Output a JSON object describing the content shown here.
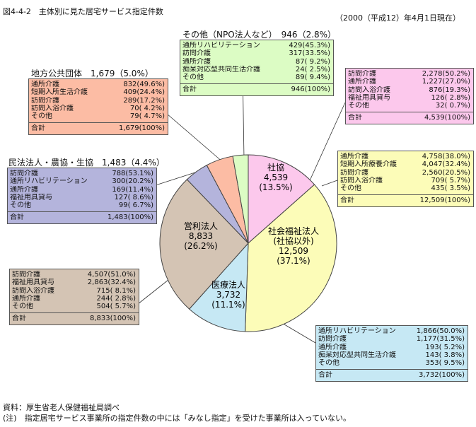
{
  "figure_title": "図4-4-2　主体別に見た居宅サービス指定件数",
  "date_note": "（2000（平成12）年4月1日現在）",
  "footer": {
    "source": "資料：厚生省老人保健福祉局調べ",
    "note": "(注)　指定居宅サービス事業所の指定件数の中には「みなし指定」を受けた事業所は入っていない。"
  },
  "colors": {
    "shakyo": "#fcc8ec",
    "shafuku": "#fcfcb8",
    "iryo": "#c6e8f4",
    "eiri": "#d4c4b4",
    "minpo": "#b4b4dc",
    "chiho": "#fcbca4",
    "sonota": "#dcfcc4"
  },
  "chart_data": {
    "type": "pie",
    "title": "",
    "slices": [
      {
        "key": "shakyo",
        "lines": [
          "社協",
          "4,539",
          "(13.5%)"
        ],
        "value": 4539,
        "percent": 13.5
      },
      {
        "key": "shafuku",
        "lines": [
          "社会福祉法人",
          "(社協以外)",
          "12,509",
          "(37.1%)"
        ],
        "value": 12509,
        "percent": 37.1
      },
      {
        "key": "iryo",
        "lines": [
          "医療法人",
          "3,732",
          "(11.1%)"
        ],
        "value": 3732,
        "percent": 11.1
      },
      {
        "key": "eiri",
        "lines": [
          "営利法人",
          "8,833",
          "(26.2%)"
        ],
        "value": 8833,
        "percent": 26.2
      },
      {
        "key": "minpo",
        "lines": [],
        "value": 1483,
        "percent": 4.4
      },
      {
        "key": "chiho",
        "lines": [],
        "value": 1679,
        "percent": 5.0
      },
      {
        "key": "sonota",
        "lines": [],
        "value": 946,
        "percent": 2.8
      }
    ]
  },
  "panels": {
    "sonota": {
      "caption": "その他（NPO法人など）　946（2.8%）",
      "rows": [
        {
          "label": "通所リハビリテーション",
          "value": "429(45.3%)"
        },
        {
          "label": "訪問介護",
          "value": "317(33.5%)"
        },
        {
          "label": "通所介護",
          "value": "87( 9.2%)"
        },
        {
          "label": "痴呆対応型共同生活介護",
          "value": "24( 2.5%)"
        },
        {
          "label": "その他",
          "value": "89( 9.4%)"
        }
      ],
      "total_label": "合計",
      "total_value": "946(100%)"
    },
    "chiho": {
      "caption": "地方公共団体　1,679（5.0%）",
      "rows": [
        {
          "label": "通所介護",
          "value": "832(49.6%)"
        },
        {
          "label": "短期入所生活介護",
          "value": "409(24.4%)"
        },
        {
          "label": "訪問介護",
          "value": "289(17.2%)"
        },
        {
          "label": "訪問入浴介護",
          "value": "70( 4.2%)"
        },
        {
          "label": "その他",
          "value": "79( 4.7%)"
        }
      ],
      "total_label": "合計",
      "total_value": "1,679(100%)"
    },
    "minpo": {
      "caption": "民法法人・農協・生協　1,483（4.4%）",
      "rows": [
        {
          "label": "訪問介護",
          "value": "788(53.1%)"
        },
        {
          "label": "通所リハビリテーション",
          "value": "300(20.2%)"
        },
        {
          "label": "通所介護",
          "value": "169(11.4%)"
        },
        {
          "label": "福祉用具貸与",
          "value": "127( 8.6%)"
        },
        {
          "label": "その他",
          "value": "99( 6.7%)"
        }
      ],
      "total_label": "合計",
      "total_value": "1,483(100%)"
    },
    "shakyo": {
      "caption": "",
      "rows": [
        {
          "label": "訪問介護",
          "value": "2,278(50.2%)"
        },
        {
          "label": "通所介護",
          "value": "1,227(27.0%)"
        },
        {
          "label": "訪問入浴介護",
          "value": "876(19.3%)"
        },
        {
          "label": "福祉用具貸与",
          "value": "126( 2.8%)"
        },
        {
          "label": "その他",
          "value": "32( 0.7%)"
        }
      ],
      "total_label": "合計",
      "total_value": "4,539(100%)"
    },
    "shafuku": {
      "caption": "",
      "rows": [
        {
          "label": "通所介護",
          "value": "4,758(38.0%)"
        },
        {
          "label": "短期入所療養介護",
          "value": "4,047(32.4%)"
        },
        {
          "label": "訪問介護",
          "value": "2,560(20.5%)"
        },
        {
          "label": "訪問入浴介護",
          "value": "709( 5.7%)"
        },
        {
          "label": "その他",
          "value": "435( 3.5%)"
        }
      ],
      "total_label": "合計",
      "total_value": "12,509(100%)"
    },
    "eiri": {
      "caption": "",
      "rows": [
        {
          "label": "訪問介護",
          "value": "4,507(51.0%)"
        },
        {
          "label": "福祉用具貸与",
          "value": "2,863(32.4%)"
        },
        {
          "label": "訪問入浴介護",
          "value": "715( 8.1%)"
        },
        {
          "label": "通所介護",
          "value": "244( 2.8%)"
        },
        {
          "label": "その他",
          "value": "504( 5.7%)"
        }
      ],
      "total_label": "合計",
      "total_value": "8,833(100%)"
    },
    "iryo": {
      "caption": "",
      "rows": [
        {
          "label": "通所リハビリテーション",
          "value": "1,866(50.0%)"
        },
        {
          "label": "訪問介護",
          "value": "1,177(31.5%)"
        },
        {
          "label": "通所介護",
          "value": "193( 5.2%)"
        },
        {
          "label": "痴呆対応型共同生活介護",
          "value": "143( 3.8%)"
        },
        {
          "label": "その他",
          "value": "353( 9.5%)"
        }
      ],
      "total_label": "合計",
      "total_value": "3,732(100%)"
    }
  }
}
